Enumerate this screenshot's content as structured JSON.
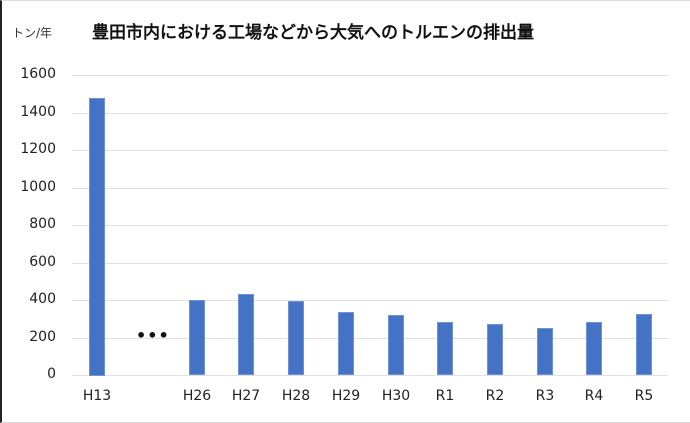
{
  "chart_data": {
    "type": "bar",
    "title": "豊田市内における工場などから大気へのトルエンの排出量",
    "ylabel": "トン/年",
    "xlabel": "",
    "categories": [
      "H13",
      "…",
      "H26",
      "H27",
      "H28",
      "H29",
      "H30",
      "R1",
      "R2",
      "R3",
      "R4",
      "R5"
    ],
    "values": [
      1480,
      null,
      400,
      434,
      393,
      338,
      320,
      281,
      270,
      249,
      283,
      327
    ],
    "ylim": [
      0,
      1600
    ],
    "yticks": [
      "0",
      "200",
      "400",
      "600",
      "800",
      "1000",
      "1200",
      "1400",
      "1600"
    ],
    "grid": true,
    "legend": "none",
    "bar_color": "#4472c4",
    "gap_marker": "…"
  },
  "title": "豊田市内における工場などから大気へのトルエンの排出量",
  "unit": "トン/年",
  "yticks": [
    "1600",
    "1400",
    "1200",
    "1000",
    "800",
    "600",
    "400",
    "200",
    "0"
  ],
  "xticks": [
    "H13",
    "H26",
    "H27",
    "H28",
    "H29",
    "H30",
    "R1",
    "R2",
    "R3",
    "R4",
    "R5"
  ],
  "ellipsis": "•••"
}
